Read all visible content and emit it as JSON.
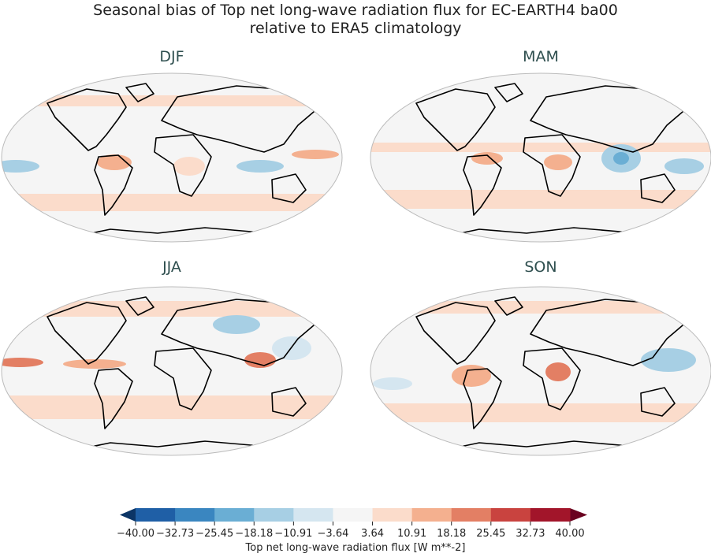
{
  "title_line1": "Seasonal bias of Top net long-wave radiation flux for EC-EARTH4 ba00",
  "title_line2": "relative to ERA5 climatology",
  "panels": [
    {
      "label": "DJF"
    },
    {
      "label": "MAM"
    },
    {
      "label": "JJA"
    },
    {
      "label": "SON"
    }
  ],
  "colorbar": {
    "label": "Top net long-wave radiation flux [W m**-2]",
    "ticks": [
      "−40.00",
      "−32.73",
      "−25.45",
      "−18.18",
      "−10.91",
      "−3.64",
      "3.64",
      "10.91",
      "18.18",
      "25.45",
      "32.73",
      "40.00"
    ],
    "colors": [
      "#1f5fa6",
      "#3a86c0",
      "#6aaed4",
      "#a7cfe4",
      "#d5e6f0",
      "#f5f5f5",
      "#fbdccb",
      "#f4b08f",
      "#e37f64",
      "#c9433f",
      "#a2152a"
    ],
    "under_color": "#0c3566",
    "over_color": "#6a0220",
    "extend": "both"
  }
}
